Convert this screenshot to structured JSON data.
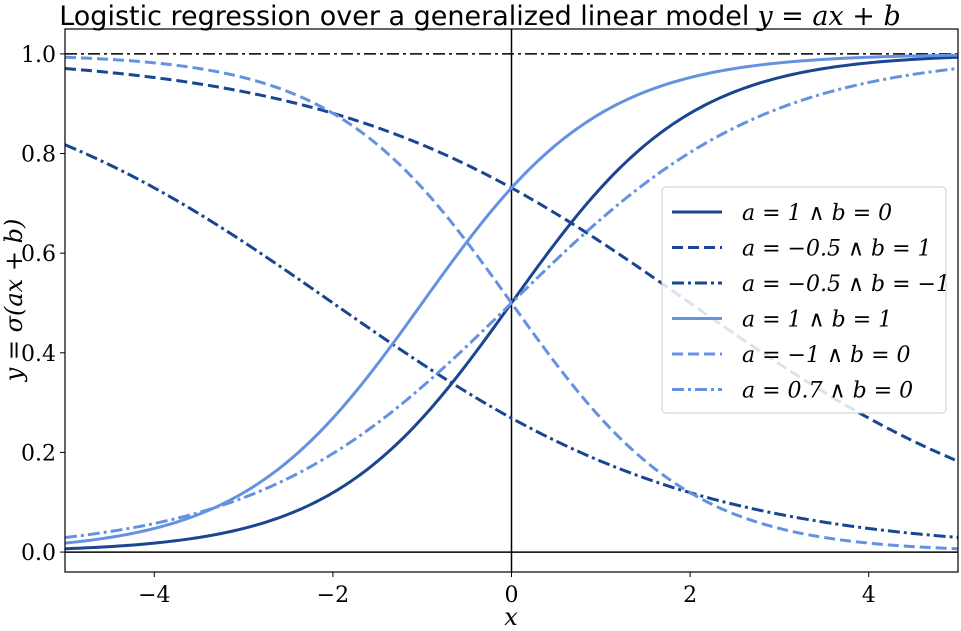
{
  "chart_data": {
    "type": "line",
    "title": "Logistic regression over a generalized linear model",
    "title_math": "y = ax + b",
    "xlabel": "x",
    "ylabel": "y = σ(ax + b)",
    "xlim": [
      -5,
      5
    ],
    "ylim": [
      -0.04,
      1.05
    ],
    "xticks": [
      -4,
      -2,
      0,
      2,
      4
    ],
    "xtick_labels": [
      "−4",
      "−2",
      "0",
      "2",
      "4"
    ],
    "yticks": [
      0.0,
      0.2,
      0.4,
      0.6,
      0.8,
      1.0
    ],
    "ytick_labels": [
      "0.0",
      "0.2",
      "0.4",
      "0.6",
      "0.8",
      "1.0"
    ],
    "grid": false,
    "legend_position": "center-right",
    "reference_lines": [
      {
        "orientation": "horizontal",
        "value": 0,
        "style": "solid",
        "color": "#000000"
      },
      {
        "orientation": "horizontal",
        "value": 1,
        "style": "dashdot",
        "color": "#000000"
      },
      {
        "orientation": "vertical",
        "value": 0,
        "style": "solid",
        "color": "#000000"
      }
    ],
    "series": [
      {
        "name": "a = 1 ∧ b = 0",
        "a": 1,
        "b": 0,
        "color": "#1a4590",
        "style": "solid"
      },
      {
        "name": "a = −0.5 ∧ b = 1",
        "a": -0.5,
        "b": 1,
        "color": "#1a4590",
        "style": "dashed"
      },
      {
        "name": "a = −0.5 ∧ b = −1",
        "a": -0.5,
        "b": -1,
        "color": "#1a4590",
        "style": "dashdot"
      },
      {
        "name": "a = 1 ∧ b = 1",
        "a": 1,
        "b": 1,
        "color": "#6592e0",
        "style": "solid"
      },
      {
        "name": "a = −1 ∧ b = 0",
        "a": -1,
        "b": 0,
        "color": "#6592e0",
        "style": "dashed"
      },
      {
        "name": "a = 0.7 ∧ b = 0",
        "a": 0.7,
        "b": 0,
        "color": "#6592e0",
        "style": "dashdot"
      }
    ]
  }
}
